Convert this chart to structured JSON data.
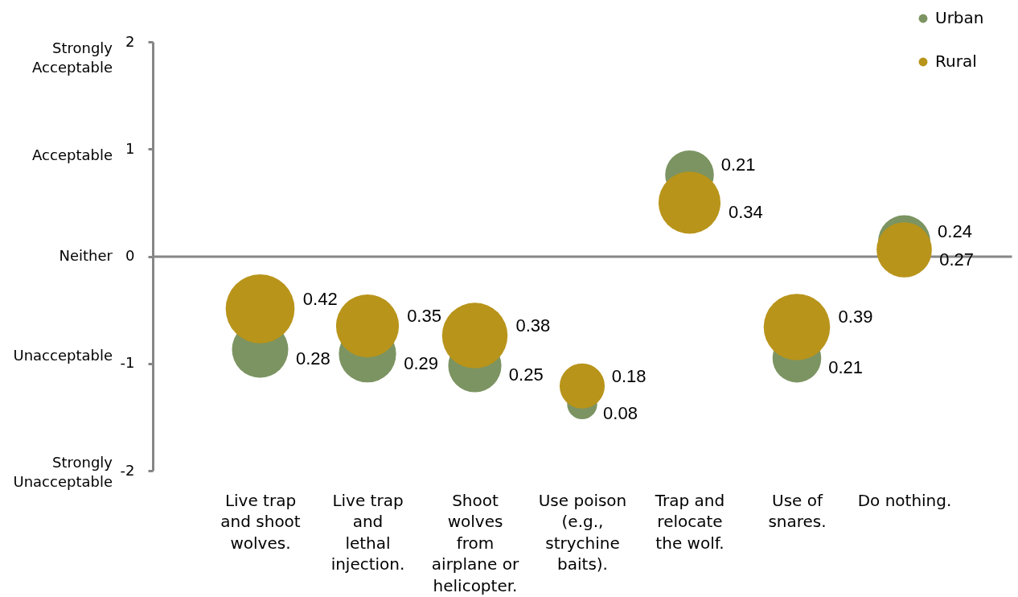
{
  "chart_data": {
    "type": "bubble",
    "categories": [
      "Live trap\nand shoot\nwolves.",
      "Live trap\nand\nlethal\ninjection.",
      "Shoot\nwolves\nfrom\nairplane or\nhelicopter.",
      "Use poison\n(e.g.,\nstrychine\nbaits).",
      "Trap and\nrelocate\nthe wolf.",
      "Use of\nsnares.",
      "Do nothing."
    ],
    "series": [
      {
        "name": "Urban",
        "color": "#7c9462",
        "values": [
          -0.87,
          -0.91,
          -1.02,
          -1.38,
          0.76,
          -0.95,
          0.14
        ],
        "sizes": [
          0.28,
          0.29,
          0.25,
          0.08,
          0.21,
          0.21,
          0.24
        ],
        "value_labels": [
          "0.28",
          "0.29",
          "0.25",
          "0.08",
          "0.21",
          "0.21",
          "0.24"
        ]
      },
      {
        "name": "Rural",
        "color": "#b8941a",
        "values": [
          -0.49,
          -0.65,
          -0.74,
          -1.21,
          0.5,
          -0.66,
          0.06
        ],
        "sizes": [
          0.42,
          0.35,
          0.38,
          0.18,
          0.34,
          0.39,
          0.27
        ],
        "value_labels": [
          "0.42",
          "0.35",
          "0.38",
          "0.18",
          "0.34",
          "0.39",
          "0.27"
        ]
      }
    ],
    "ylim": [
      -2,
      2
    ],
    "yticks": [
      -2,
      -1,
      0,
      1,
      2
    ],
    "annotations": [
      "Strongly\nAcceptable",
      "Acceptable",
      "Neither",
      "Unacceptable",
      "Strongly\nUnacceptable"
    ],
    "legend": "top right"
  }
}
